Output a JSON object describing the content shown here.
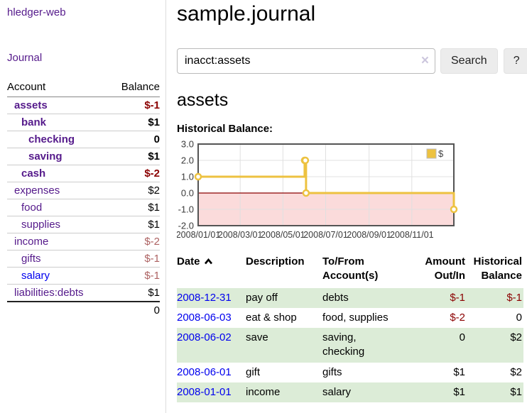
{
  "app": {
    "title": "hledger-web"
  },
  "sidebar": {
    "journal_link": "Journal",
    "accounts_table": {
      "headers": {
        "account": "Account",
        "balance": "Balance"
      },
      "rows": [
        {
          "account": "assets",
          "balance": "$-1",
          "indent": 0,
          "bold": true,
          "balance_tone": "negative-strong",
          "link_tone": "visited"
        },
        {
          "account": "bank",
          "balance": "$1",
          "indent": 1,
          "bold": true,
          "balance_tone": "normal",
          "link_tone": "visited"
        },
        {
          "account": "checking",
          "balance": "0",
          "indent": 2,
          "bold": true,
          "balance_tone": "normal",
          "link_tone": "visited"
        },
        {
          "account": "saving",
          "balance": "$1",
          "indent": 2,
          "bold": true,
          "balance_tone": "normal",
          "link_tone": "visited"
        },
        {
          "account": "cash",
          "balance": "$-2",
          "indent": 1,
          "bold": true,
          "balance_tone": "negative-strong",
          "link_tone": "visited"
        },
        {
          "account": "expenses",
          "balance": "$2",
          "indent": 0,
          "bold": false,
          "balance_tone": "normal",
          "link_tone": "visited"
        },
        {
          "account": "food",
          "balance": "$1",
          "indent": 1,
          "bold": false,
          "balance_tone": "normal",
          "link_tone": "visited"
        },
        {
          "account": "supplies",
          "balance": "$1",
          "indent": 1,
          "bold": false,
          "balance_tone": "normal",
          "link_tone": "visited"
        },
        {
          "account": "income",
          "balance": "$-2",
          "indent": 0,
          "bold": false,
          "balance_tone": "negative-soft",
          "link_tone": "visited"
        },
        {
          "account": "gifts",
          "balance": "$-1",
          "indent": 1,
          "bold": false,
          "balance_tone": "negative-soft",
          "link_tone": "visited"
        },
        {
          "account": "salary",
          "balance": "$-1",
          "indent": 1,
          "bold": false,
          "balance_tone": "negative-soft",
          "link_tone": "unvisited"
        },
        {
          "account": "liabilities:debts",
          "balance": "$1",
          "indent": 0,
          "bold": false,
          "balance_tone": "normal",
          "link_tone": "visited"
        }
      ],
      "total": "0"
    }
  },
  "main": {
    "title": "sample.journal",
    "search": {
      "value": "inacct:assets",
      "clear_icon": "×",
      "search_button": "Search",
      "help_button": "?"
    },
    "account_heading": "assets",
    "chart_heading": "Historical Balance:"
  },
  "chart_data": {
    "type": "line",
    "step": true,
    "title": "Historical Balance",
    "series": [
      {
        "name": "$",
        "color": "#edc240",
        "points": [
          [
            "2008-01-01",
            1
          ],
          [
            "2008-06-01",
            2
          ],
          [
            "2008-06-02",
            2
          ],
          [
            "2008-06-03",
            0
          ],
          [
            "2008-12-31",
            -1
          ]
        ]
      }
    ],
    "xlim": [
      "2008-01-01",
      "2008-12-31"
    ],
    "ylim": [
      -2,
      3
    ],
    "x_ticks": [
      {
        "date": "2008-01-01",
        "label": "2008/01/01"
      },
      {
        "date": "2008-03-01",
        "label": "2008/03/01"
      },
      {
        "date": "2008-05-01",
        "label": "2008/05/01"
      },
      {
        "date": "2008-07-01",
        "label": "2008/07/01"
      },
      {
        "date": "2008-09-01",
        "label": "2008/09/01"
      },
      {
        "date": "2008-11-01",
        "label": "2008/11/01"
      }
    ],
    "y_ticks": [
      {
        "value": 3,
        "label": "3.0"
      },
      {
        "value": 2,
        "label": "2.0"
      },
      {
        "value": 1,
        "label": "1.0"
      },
      {
        "value": 0,
        "label": "0.0"
      },
      {
        "value": -1,
        "label": "-1.0"
      },
      {
        "value": -2,
        "label": "-2.0"
      }
    ],
    "legend": {
      "label": "$",
      "position": "top-right"
    },
    "colors": {
      "line": "#edc240",
      "marker_fill": "#ffffff",
      "negative_region": "#fbdbdb",
      "zero_line": "#8b0000",
      "grid": "#e0e0e0",
      "border": "#545454",
      "tick_text": "#3a3a3a"
    },
    "grid": true
  },
  "register": {
    "headers": {
      "date": "Date",
      "description": "Description",
      "accounts": "To/From Account(s)",
      "amount": "Amount Out/In",
      "balance": "Historical Balance"
    },
    "rows": [
      {
        "date": "2008-12-31",
        "description": "pay off",
        "accounts": "debts",
        "amount": "$-1",
        "balance": "$-1"
      },
      {
        "date": "2008-06-03",
        "description": "eat & shop",
        "accounts": "food, supplies",
        "amount": "$-2",
        "balance": "0"
      },
      {
        "date": "2008-06-02",
        "description": "save",
        "accounts": "saving, checking",
        "amount": "0",
        "balance": "$2"
      },
      {
        "date": "2008-06-01",
        "description": "gift",
        "accounts": "gifts",
        "amount": "$1",
        "balance": "$2"
      },
      {
        "date": "2008-01-01",
        "description": "income",
        "accounts": "salary",
        "amount": "$1",
        "balance": "$1"
      }
    ]
  }
}
